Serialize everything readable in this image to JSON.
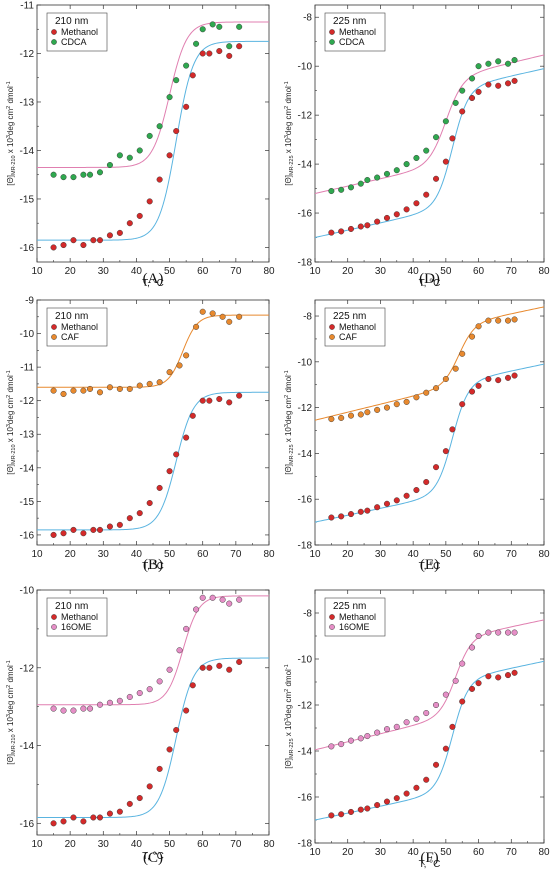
{
  "colors": {
    "methanol_fill": "#d42a2a",
    "methanol_fit": "#5ab4e0",
    "cdca_fill": "#2fa84f",
    "caf_fill": "#e8892e",
    "ome_fill": "#e58ec6",
    "alt_fit": "#e07fb0",
    "caf_fit": "#e8892e"
  },
  "chart_data": [
    {
      "type": "scatter",
      "panel_label": "(A)",
      "legend_title": "210 nm",
      "xlabel": "T, °C",
      "ylabel_prefix": "[Θ]",
      "ylabel_sub": "MR-210",
      "ylabel_mid": " x 10",
      "ylabel_sup": "3",
      "ylabel_unit": "deg cm",
      "ylabel_sup2": "2",
      "ylabel_end": " dmol",
      "ylabel_sup3": "-1",
      "xlim": [
        10,
        80
      ],
      "ylim": [
        -16.3,
        -11
      ],
      "xticks": [
        10,
        20,
        30,
        40,
        50,
        60,
        70,
        80
      ],
      "yticks": [
        -16,
        -15,
        -14,
        -13,
        -12,
        -11
      ],
      "series": [
        {
          "name": "Methanol",
          "color_key": "methanol_fill",
          "x": [
            15,
            18,
            21,
            24,
            27,
            29,
            32,
            35,
            38,
            41,
            44,
            47,
            50,
            52,
            55,
            57,
            60,
            62,
            65,
            68,
            71
          ],
          "y": [
            -16.0,
            -15.95,
            -15.85,
            -15.95,
            -15.85,
            -15.85,
            -15.75,
            -15.7,
            -15.5,
            -15.35,
            -15.05,
            -14.6,
            -14.1,
            -13.6,
            -13.1,
            -12.45,
            -12.0,
            -12.0,
            -11.95,
            -12.05,
            -11.85
          ],
          "fit": {
            "color_key": "methanol_fit",
            "lo": -15.85,
            "hi": -11.75,
            "tm": 52,
            "w": 2.6
          }
        },
        {
          "name": "CDCA",
          "color_key": "cdca_fill",
          "x": [
            15,
            18,
            21,
            24,
            26,
            29,
            32,
            35,
            38,
            41,
            44,
            47,
            50,
            52,
            55,
            58,
            60,
            63,
            65,
            68,
            71
          ],
          "y": [
            -14.5,
            -14.55,
            -14.55,
            -14.5,
            -14.5,
            -14.45,
            -14.3,
            -14.1,
            -14.15,
            -14.0,
            -13.7,
            -13.5,
            -12.9,
            -12.55,
            -12.25,
            -11.8,
            -11.5,
            -11.4,
            -11.45,
            -11.85,
            -11.45
          ],
          "fit": {
            "color_key": "alt_fit",
            "lo": -14.35,
            "hi": -11.35,
            "tm": 50,
            "w": 2.6
          }
        }
      ]
    },
    {
      "type": "scatter",
      "panel_label": "(D)",
      "legend_title": "225 nm",
      "xlabel": "T, °C",
      "ylabel_prefix": "[Θ]",
      "ylabel_sub": "MR-225",
      "ylabel_mid": " x 10",
      "ylabel_sup": "3",
      "ylabel_unit": "deg cm",
      "ylabel_sup2": "2",
      "ylabel_end": " dmol",
      "ylabel_sup3": "-1",
      "xlim": [
        10,
        80
      ],
      "ylim": [
        -18,
        -7.5
      ],
      "xticks": [
        10,
        20,
        30,
        40,
        50,
        60,
        70,
        80
      ],
      "yticks": [
        -18,
        -16,
        -14,
        -12,
        -10,
        -8
      ],
      "series": [
        {
          "name": "Methanol",
          "color_key": "methanol_fill",
          "x": [
            15,
            18,
            21,
            24,
            26,
            29,
            32,
            35,
            38,
            41,
            44,
            47,
            50,
            52,
            55,
            58,
            60,
            63,
            66,
            69,
            71
          ],
          "y": [
            -16.8,
            -16.75,
            -16.65,
            -16.55,
            -16.5,
            -16.35,
            -16.2,
            -16.05,
            -15.85,
            -15.6,
            -15.25,
            -14.6,
            -13.9,
            -12.95,
            -11.85,
            -11.3,
            -11.05,
            -10.75,
            -10.8,
            -10.7,
            -10.6
          ],
          "fit": {
            "color_key": "methanol_fit",
            "lo_a": -17.3,
            "lo_b": 0.03,
            "hi_a": -12.5,
            "hi_b": 0.03,
            "tm": 52,
            "w": 2.4
          }
        },
        {
          "name": "CDCA",
          "color_key": "cdca_fill",
          "x": [
            15,
            18,
            21,
            24,
            26,
            29,
            32,
            35,
            38,
            41,
            44,
            47,
            50,
            53,
            55,
            58,
            60,
            63,
            66,
            69,
            71
          ],
          "y": [
            -15.1,
            -15.05,
            -14.95,
            -14.8,
            -14.65,
            -14.55,
            -14.4,
            -14.25,
            -14.0,
            -13.75,
            -13.45,
            -12.9,
            -12.25,
            -11.5,
            -11.0,
            -10.5,
            -10.0,
            -9.9,
            -9.8,
            -9.9,
            -9.75
          ],
          "fit": {
            "color_key": "alt_fit",
            "lo_a": -15.5,
            "lo_b": 0.03,
            "hi_a": -12.1,
            "hi_b": 0.032,
            "tm": 50,
            "w": 2.6
          }
        }
      ]
    },
    {
      "type": "scatter",
      "panel_label": "(B)",
      "legend_title": "210 nm",
      "xlabel": "T, °C",
      "ylabel_prefix": "[Θ]",
      "ylabel_sub": "MR-210",
      "ylabel_mid": " x 10",
      "ylabel_sup": "3",
      "ylabel_unit": "deg cm",
      "ylabel_sup2": "2",
      "ylabel_end": " dmol",
      "ylabel_sup3": "-1",
      "xlim": [
        10,
        80
      ],
      "ylim": [
        -16.3,
        -9
      ],
      "xticks": [
        10,
        20,
        30,
        40,
        50,
        60,
        70,
        80
      ],
      "yticks": [
        -16,
        -15,
        -14,
        -13,
        -12,
        -11,
        -10,
        -9
      ],
      "series": [
        {
          "name": "Methanol",
          "color_key": "methanol_fill",
          "x": [
            15,
            18,
            21,
            24,
            27,
            29,
            32,
            35,
            38,
            41,
            44,
            47,
            50,
            52,
            55,
            57,
            60,
            62,
            65,
            68,
            71
          ],
          "y": [
            -16.0,
            -15.95,
            -15.85,
            -15.95,
            -15.85,
            -15.85,
            -15.75,
            -15.7,
            -15.5,
            -15.35,
            -15.05,
            -14.6,
            -14.1,
            -13.6,
            -13.1,
            -12.45,
            -12.0,
            -12.0,
            -11.95,
            -12.05,
            -11.85
          ],
          "fit": {
            "color_key": "methanol_fit",
            "lo": -15.85,
            "hi": -11.75,
            "tm": 52,
            "w": 2.6
          }
        },
        {
          "name": "CAF",
          "color_key": "caf_fill",
          "x": [
            15,
            18,
            21,
            24,
            26,
            29,
            32,
            35,
            38,
            41,
            44,
            47,
            50,
            53,
            55,
            58,
            60,
            63,
            66,
            68,
            71
          ],
          "y": [
            -11.7,
            -11.8,
            -11.7,
            -11.7,
            -11.65,
            -11.75,
            -11.6,
            -11.65,
            -11.65,
            -11.55,
            -11.5,
            -11.45,
            -11.15,
            -10.95,
            -10.65,
            -9.8,
            -9.35,
            -9.4,
            -9.5,
            -9.65,
            -9.5
          ],
          "fit": {
            "color_key": "caf_fit",
            "lo": -11.6,
            "hi": -9.45,
            "tm": 54,
            "w": 2.2
          }
        }
      ]
    },
    {
      "type": "scatter",
      "panel_label": "(E)",
      "legend_title": "225 nm",
      "xlabel": "T, °C",
      "ylabel_prefix": "[Θ]",
      "ylabel_sub": "MR-225",
      "ylabel_mid": " x 10",
      "ylabel_sup": "3",
      "ylabel_unit": "deg cm",
      "ylabel_sup2": "2",
      "ylabel_end": " dmol",
      "ylabel_sup3": "-1",
      "xlim": [
        10,
        80
      ],
      "ylim": [
        -18,
        -7.3
      ],
      "xticks": [
        10,
        20,
        30,
        40,
        50,
        60,
        70,
        80
      ],
      "yticks": [
        -18,
        -16,
        -14,
        -12,
        -10,
        -8
      ],
      "series": [
        {
          "name": "Methanol",
          "color_key": "methanol_fill",
          "x": [
            15,
            18,
            21,
            24,
            26,
            29,
            32,
            35,
            38,
            41,
            44,
            47,
            50,
            52,
            55,
            58,
            60,
            63,
            66,
            69,
            71
          ],
          "y": [
            -16.8,
            -16.75,
            -16.65,
            -16.55,
            -16.5,
            -16.35,
            -16.2,
            -16.05,
            -15.85,
            -15.6,
            -15.25,
            -14.6,
            -13.9,
            -12.95,
            -11.85,
            -11.3,
            -11.05,
            -10.75,
            -10.8,
            -10.7,
            -10.6
          ],
          "fit": {
            "color_key": "methanol_fit",
            "lo_a": -17.3,
            "lo_b": 0.03,
            "hi_a": -12.5,
            "hi_b": 0.03,
            "tm": 52,
            "w": 2.4
          }
        },
        {
          "name": "CAF",
          "color_key": "caf_fill",
          "x": [
            15,
            18,
            21,
            24,
            26,
            29,
            32,
            35,
            38,
            41,
            44,
            47,
            50,
            53,
            55,
            58,
            60,
            63,
            66,
            69,
            71
          ],
          "y": [
            -12.5,
            -12.45,
            -12.35,
            -12.3,
            -12.2,
            -12.1,
            -12.0,
            -11.85,
            -11.75,
            -11.55,
            -11.35,
            -11.15,
            -10.75,
            -10.3,
            -9.65,
            -8.9,
            -8.45,
            -8.2,
            -8.2,
            -8.2,
            -8.15
          ],
          "fit": {
            "color_key": "caf_fit",
            "lo_a": -12.9,
            "lo_b": 0.035,
            "hi_a": -10.0,
            "hi_b": 0.03,
            "tm": 54,
            "w": 2.4
          }
        }
      ]
    },
    {
      "type": "scatter",
      "panel_label": "(C)",
      "legend_title": "210 nm",
      "xlabel": "T, °C",
      "ylabel_prefix": "[Θ]",
      "ylabel_sub": "MR-210",
      "ylabel_mid": " x 10",
      "ylabel_sup": "3",
      "ylabel_unit": "deg cm",
      "ylabel_sup2": "2",
      "ylabel_end": " dmol",
      "ylabel_sup3": "-1",
      "xlim": [
        10,
        80
      ],
      "ylim": [
        -16.3,
        -10
      ],
      "xticks": [
        10,
        20,
        30,
        40,
        50,
        60,
        70,
        80
      ],
      "yticks": [
        -16,
        -14,
        -12,
        -10
      ],
      "yminor": [
        -15,
        -13,
        -11
      ],
      "series": [
        {
          "name": "Methanol",
          "color_key": "methanol_fill",
          "x": [
            15,
            18,
            21,
            24,
            27,
            29,
            32,
            35,
            38,
            41,
            44,
            47,
            50,
            52,
            55,
            57,
            60,
            62,
            65,
            68,
            71
          ],
          "y": [
            -16.0,
            -15.95,
            -15.85,
            -15.95,
            -15.85,
            -15.85,
            -15.75,
            -15.7,
            -15.5,
            -15.35,
            -15.05,
            -14.6,
            -14.1,
            -13.6,
            -13.1,
            -12.45,
            -12.0,
            -12.0,
            -11.95,
            -12.05,
            -11.85
          ],
          "fit": {
            "color_key": "methanol_fit",
            "lo": -15.85,
            "hi": -11.75,
            "tm": 52,
            "w": 2.6
          }
        },
        {
          "name": "16OME",
          "color_key": "ome_fill",
          "x": [
            15,
            18,
            21,
            24,
            26,
            29,
            32,
            35,
            38,
            41,
            44,
            47,
            50,
            53,
            55,
            58,
            60,
            63,
            66,
            68,
            71
          ],
          "y": [
            -13.05,
            -13.1,
            -13.1,
            -13.05,
            -13.05,
            -12.95,
            -12.9,
            -12.85,
            -12.75,
            -12.65,
            -12.55,
            -12.35,
            -12.05,
            -11.55,
            -11.0,
            -10.5,
            -10.2,
            -10.2,
            -10.25,
            -10.35,
            -10.25
          ],
          "fit": {
            "color_key": "alt_fit",
            "lo": -12.95,
            "hi": -10.15,
            "tm": 54,
            "w": 2.4
          }
        }
      ]
    },
    {
      "type": "scatter",
      "panel_label": "(F)",
      "legend_title": "225 nm",
      "xlabel": "T, °C",
      "ylabel_prefix": "[Θ]",
      "ylabel_sub": "MR-225",
      "ylabel_mid": " x 10",
      "ylabel_sup": "3",
      "ylabel_unit": "deg cm",
      "ylabel_sup2": "2",
      "ylabel_end": " dmol",
      "ylabel_sup3": "-1",
      "xlim": [
        10,
        80
      ],
      "ylim": [
        -18,
        -7
      ],
      "xticks": [
        10,
        20,
        30,
        40,
        50,
        60,
        70,
        80
      ],
      "yticks": [
        -18,
        -16,
        -14,
        -12,
        -10,
        -8
      ],
      "series": [
        {
          "name": "Methanol",
          "color_key": "methanol_fill",
          "x": [
            15,
            18,
            21,
            24,
            26,
            29,
            32,
            35,
            38,
            41,
            44,
            47,
            50,
            52,
            55,
            58,
            60,
            63,
            66,
            69,
            71
          ],
          "y": [
            -16.8,
            -16.75,
            -16.65,
            -16.55,
            -16.5,
            -16.35,
            -16.2,
            -16.05,
            -15.85,
            -15.6,
            -15.25,
            -14.6,
            -13.9,
            -12.95,
            -11.85,
            -11.3,
            -11.05,
            -10.75,
            -10.8,
            -10.7,
            -10.6
          ],
          "fit": {
            "color_key": "methanol_fit",
            "lo_a": -17.3,
            "lo_b": 0.03,
            "hi_a": -12.5,
            "hi_b": 0.03,
            "tm": 52,
            "w": 2.4
          }
        },
        {
          "name": "16OME",
          "color_key": "ome_fill",
          "x": [
            15,
            18,
            21,
            24,
            26,
            29,
            32,
            35,
            38,
            41,
            44,
            47,
            50,
            53,
            55,
            58,
            60,
            63,
            66,
            69,
            71
          ],
          "y": [
            -13.8,
            -13.7,
            -13.55,
            -13.45,
            -13.35,
            -13.2,
            -13.05,
            -12.95,
            -12.75,
            -12.6,
            -12.35,
            -12.0,
            -11.55,
            -10.95,
            -10.2,
            -9.5,
            -9.0,
            -8.85,
            -8.85,
            -8.85,
            -8.85
          ],
          "fit": {
            "color_key": "alt_fit",
            "lo_a": -14.3,
            "lo_b": 0.035,
            "hi_a": -10.7,
            "hi_b": 0.03,
            "tm": 53,
            "w": 2.4
          }
        }
      ]
    }
  ]
}
